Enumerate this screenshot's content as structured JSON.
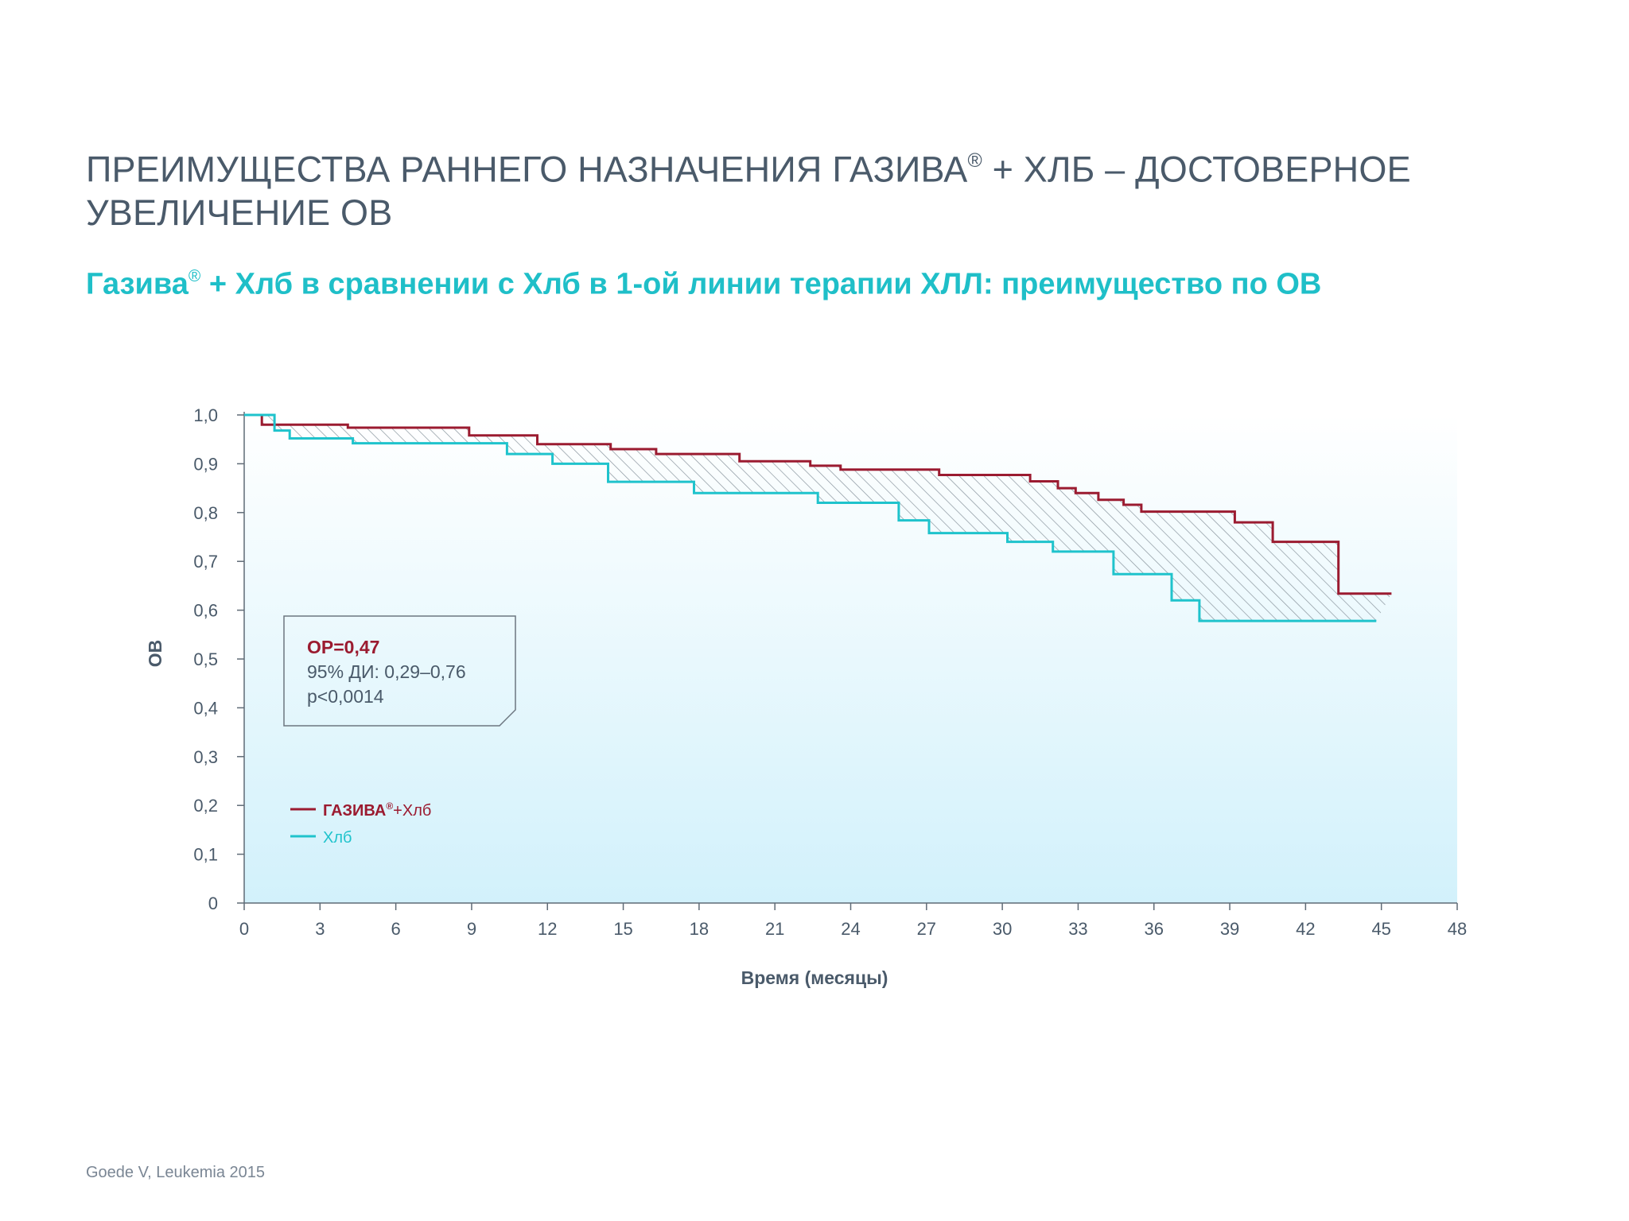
{
  "page": {
    "title_pre": "ПРЕИМУЩЕСТВА РАННЕГО НАЗНАЧЕНИЯ ГАЗИВА",
    "title_reg": "®",
    "title_post": " + ХЛБ – ДОСТОВЕРНОЕ УВЕЛИЧЕНИЕ ОВ",
    "subtitle_pre": "Газива",
    "subtitle_reg": "®",
    "subtitle_post": " + Хлб в сравнении с Хлб в 1-ой линии терапии ХЛЛ: преимущество по ОВ",
    "source": "Goede V, Leukemia 2015"
  },
  "chart_data": {
    "type": "line",
    "subtype": "kaplan-meier step",
    "xlabel": "Время (месяцы)",
    "ylabel": "ОВ",
    "xlim": [
      0,
      48
    ],
    "ylim": [
      0,
      1
    ],
    "x_ticks": [
      0,
      3,
      6,
      9,
      12,
      15,
      18,
      21,
      24,
      27,
      30,
      33,
      36,
      39,
      42,
      45,
      48
    ],
    "y_ticks": [
      {
        "value": 0,
        "label": "0"
      },
      {
        "value": 0.1,
        "label": "0,1"
      },
      {
        "value": 0.2,
        "label": "0,2"
      },
      {
        "value": 0.3,
        "label": "0,3"
      },
      {
        "value": 0.4,
        "label": "0,4"
      },
      {
        "value": 0.5,
        "label": "0,5"
      },
      {
        "value": 0.6,
        "label": "0,6"
      },
      {
        "value": 0.7,
        "label": "0,7"
      },
      {
        "value": 0.8,
        "label": "0,8"
      },
      {
        "value": 0.9,
        "label": "0,9"
      },
      {
        "value": 1.0,
        "label": "1,0"
      }
    ],
    "grid": false,
    "background": "gradient light-blue",
    "area_between_series": "hatched",
    "series": [
      {
        "name_main": "ГАЗИВА",
        "name_reg": "®",
        "name_suffix": "+Хлб",
        "color": "#9b1b30",
        "points": [
          [
            0,
            1.0
          ],
          [
            0.7,
            1.0
          ],
          [
            0.7,
            0.98
          ],
          [
            4.1,
            0.98
          ],
          [
            4.1,
            0.974
          ],
          [
            8.9,
            0.974
          ],
          [
            8.9,
            0.958
          ],
          [
            11.6,
            0.958
          ],
          [
            11.6,
            0.94
          ],
          [
            14.5,
            0.94
          ],
          [
            14.5,
            0.93
          ],
          [
            16.3,
            0.93
          ],
          [
            16.3,
            0.92
          ],
          [
            19.6,
            0.92
          ],
          [
            19.6,
            0.905
          ],
          [
            22.4,
            0.905
          ],
          [
            22.4,
            0.896
          ],
          [
            23.6,
            0.896
          ],
          [
            23.6,
            0.888
          ],
          [
            27.5,
            0.888
          ],
          [
            27.5,
            0.877
          ],
          [
            31.1,
            0.877
          ],
          [
            31.1,
            0.864
          ],
          [
            32.2,
            0.864
          ],
          [
            32.2,
            0.85
          ],
          [
            32.9,
            0.85
          ],
          [
            32.9,
            0.84
          ],
          [
            33.8,
            0.84
          ],
          [
            33.8,
            0.826
          ],
          [
            34.8,
            0.826
          ],
          [
            34.8,
            0.816
          ],
          [
            35.5,
            0.816
          ],
          [
            35.5,
            0.802
          ],
          [
            39.2,
            0.802
          ],
          [
            39.2,
            0.78
          ],
          [
            40.7,
            0.78
          ],
          [
            40.7,
            0.74
          ],
          [
            43.3,
            0.74
          ],
          [
            43.3,
            0.634
          ],
          [
            45.4,
            0.634
          ]
        ]
      },
      {
        "name": "Хлб",
        "color": "#1fc3cc",
        "points": [
          [
            0,
            1.0
          ],
          [
            1.2,
            1.0
          ],
          [
            1.2,
            0.968
          ],
          [
            1.8,
            0.968
          ],
          [
            1.8,
            0.952
          ],
          [
            4.3,
            0.952
          ],
          [
            4.3,
            0.942
          ],
          [
            10.4,
            0.942
          ],
          [
            10.4,
            0.92
          ],
          [
            12.2,
            0.92
          ],
          [
            12.2,
            0.9
          ],
          [
            14.4,
            0.9
          ],
          [
            14.4,
            0.863
          ],
          [
            17.8,
            0.863
          ],
          [
            17.8,
            0.84
          ],
          [
            22.7,
            0.84
          ],
          [
            22.7,
            0.82
          ],
          [
            25.9,
            0.82
          ],
          [
            25.9,
            0.784
          ],
          [
            27.1,
            0.784
          ],
          [
            27.1,
            0.758
          ],
          [
            30.2,
            0.758
          ],
          [
            30.2,
            0.74
          ],
          [
            32.0,
            0.74
          ],
          [
            32.0,
            0.72
          ],
          [
            34.4,
            0.72
          ],
          [
            34.4,
            0.674
          ],
          [
            36.7,
            0.674
          ],
          [
            36.7,
            0.62
          ],
          [
            37.8,
            0.62
          ],
          [
            37.8,
            0.578
          ],
          [
            44.8,
            0.578
          ]
        ]
      }
    ],
    "annotation": {
      "line1": "ОР=0,47",
      "line2": "95% ДИ: 0,29–0,76",
      "line3": "p<0,0014"
    }
  }
}
